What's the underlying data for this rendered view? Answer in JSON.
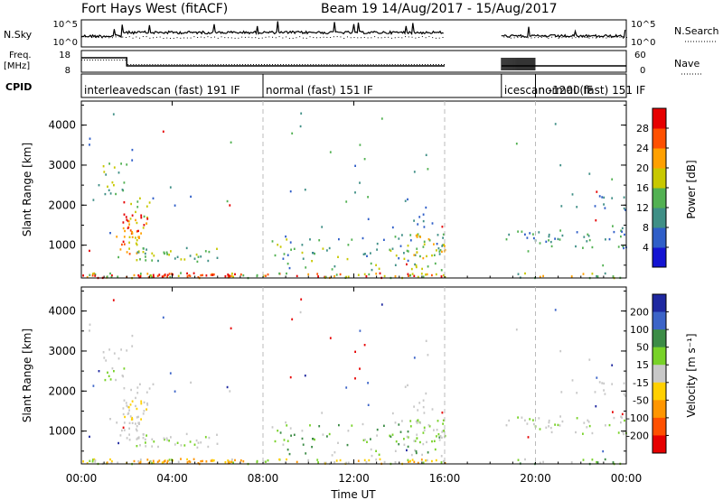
{
  "header": {
    "title": "Fort Hays West (fitACF)",
    "subtitle": "Beam 19  14/Aug/2017 - 15/Aug/2017"
  },
  "noise_panel": {
    "left_label": "N.Sky",
    "right_label": "N.Search",
    "left_ticks": [
      "10^5",
      "10^0"
    ],
    "right_ticks": [
      "10^5",
      "10^0"
    ]
  },
  "freq_panel": {
    "left_label_top": "Freq.",
    "left_label_bottom": "[MHz]",
    "right_label": "Nave",
    "left_ticks": [
      "18",
      "8"
    ],
    "right_ticks": [
      "60",
      "0"
    ]
  },
  "cpid": {
    "label": "CPID",
    "segments": [
      {
        "text": "interleavedscan (fast) 191 IF",
        "start_hour": 0
      },
      {
        "text": "normal (fast) 151 IF",
        "start_hour": 8
      },
      {
        "text": "icescan -1200 IF",
        "start_hour": 18.5
      },
      {
        "text": "normal (fast) 151 IF",
        "start_hour": 20
      }
    ]
  },
  "time_axis": {
    "label": "Time UT",
    "ticks": [
      "00:00",
      "04:00",
      "08:00",
      "12:00",
      "16:00",
      "20:00",
      "00:00"
    ],
    "tick_hours": [
      0,
      4,
      8,
      12,
      16,
      20,
      24
    ],
    "data_gap_hours": [
      16,
      18.5
    ]
  },
  "chart_data": [
    {
      "type": "heatmap",
      "name": "power",
      "ylabel": "Slant Range [km]",
      "yticks": [
        1000,
        2000,
        3000,
        4000
      ],
      "ylim": [
        180,
        4600
      ],
      "xlim_hours": [
        0,
        24
      ],
      "colorbar_label": "Power [dB]",
      "colorbar_ticks": [
        "4",
        "8",
        "12",
        "16",
        "20",
        "24",
        "28"
      ],
      "colorbar_values": [
        4,
        8,
        12,
        16,
        20,
        24,
        28
      ],
      "colorbar_colors": [
        "#1414d2",
        "#2f5ec8",
        "#3f8f86",
        "#52b152",
        "#c8c800",
        "#ffa000",
        "#ff5000",
        "#e60000"
      ],
      "clim": [
        0,
        32
      ]
    },
    {
      "type": "heatmap",
      "name": "velocity",
      "ylabel": "Slant Range [km]",
      "yticks": [
        1000,
        2000,
        3000,
        4000
      ],
      "ylim": [
        180,
        4600
      ],
      "xlim_hours": [
        0,
        24
      ],
      "colorbar_label": "Velocity [m s⁻¹]",
      "colorbar_ticks": [
        "200",
        "100",
        "50",
        "15",
        "-15",
        "-50",
        "-100",
        "-200"
      ],
      "colorbar_colors": [
        "#1e28a0",
        "#3c64c8",
        "#3c8c46",
        "#78d228",
        "#c8c8c8",
        "#ffd000",
        "#ff9600",
        "#ff5000",
        "#e60000"
      ]
    }
  ]
}
